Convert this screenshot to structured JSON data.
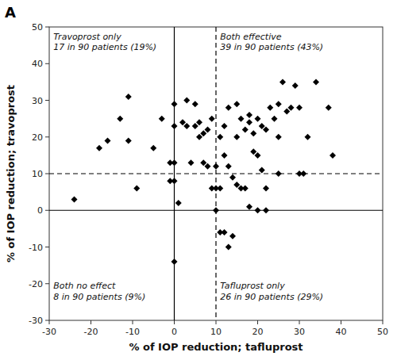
{
  "chart_data": {
    "type": "scatter",
    "title": "A",
    "x_label": "% of IOP reduction; tafluprost",
    "y_label": "% of IOP reduction; travoprost",
    "xlim": [
      -30,
      50
    ],
    "ylim": [
      -30,
      50
    ],
    "xticks": [
      -30,
      -20,
      -10,
      0,
      10,
      20,
      30,
      40,
      50
    ],
    "yticks": [
      -30,
      -20,
      -10,
      0,
      10,
      20,
      30,
      40,
      50
    ],
    "grid": false,
    "color": "#000000",
    "marker": "diamond",
    "x": [
      -24,
      -18,
      -16,
      -13,
      -11,
      -11,
      -9,
      -5,
      -3,
      -1,
      -1,
      0,
      0,
      0,
      0,
      0,
      1,
      2,
      3,
      3,
      4,
      5,
      5,
      6,
      6,
      7,
      7,
      8,
      8,
      9,
      9,
      10,
      10,
      10,
      11,
      11,
      12,
      12,
      13,
      13,
      14,
      15,
      15,
      16,
      17,
      18,
      18,
      19,
      19,
      20,
      20,
      21,
      21,
      22,
      22,
      23,
      24,
      25,
      25,
      26,
      27,
      28,
      29,
      30,
      31,
      32,
      34,
      37,
      38,
      11,
      12,
      13,
      14,
      15,
      16,
      17,
      18,
      20,
      22,
      25,
      30
    ],
    "values": [
      3,
      17,
      19,
      25,
      31,
      19,
      6,
      17,
      25,
      13,
      8,
      29,
      23,
      13,
      8,
      -14,
      2,
      24,
      30,
      23,
      13,
      29,
      23,
      24,
      20,
      21,
      13,
      22,
      12,
      25,
      6,
      0,
      6,
      12,
      20,
      6,
      23,
      15,
      28,
      12,
      9,
      29,
      20,
      25,
      22,
      24,
      26,
      21,
      16,
      25,
      15,
      23,
      11,
      22,
      6,
      28,
      25,
      29,
      20,
      35,
      27,
      28,
      34,
      28,
      10,
      20,
      35,
      28,
      15,
      -6,
      -6,
      -10,
      -7,
      7,
      6,
      6,
      1,
      0,
      0,
      10,
      10
    ],
    "reference_lines": [
      {
        "axis": "x",
        "value": 0,
        "line_style": "solid"
      },
      {
        "axis": "y",
        "value": 0,
        "line_style": "solid"
      },
      {
        "axis": "x",
        "value": 10,
        "line_style": "dashed"
      },
      {
        "axis": "y",
        "value": 10,
        "line_style": "dashed"
      }
    ],
    "annotations": [
      {
        "text": "Travoprost only\n17 in 90 patients (19%)",
        "x": -29,
        "y": 49
      },
      {
        "text": "Both effective\n39 in 90 patients (43%)",
        "x": 11,
        "y": 49
      },
      {
        "text": "Both no effect\n8 in 90 patients (9%)",
        "x": -29,
        "y": -19
      },
      {
        "text": "Tafluprost only\n26 in 90 patients (29%)",
        "x": 11,
        "y": -19
      }
    ]
  }
}
